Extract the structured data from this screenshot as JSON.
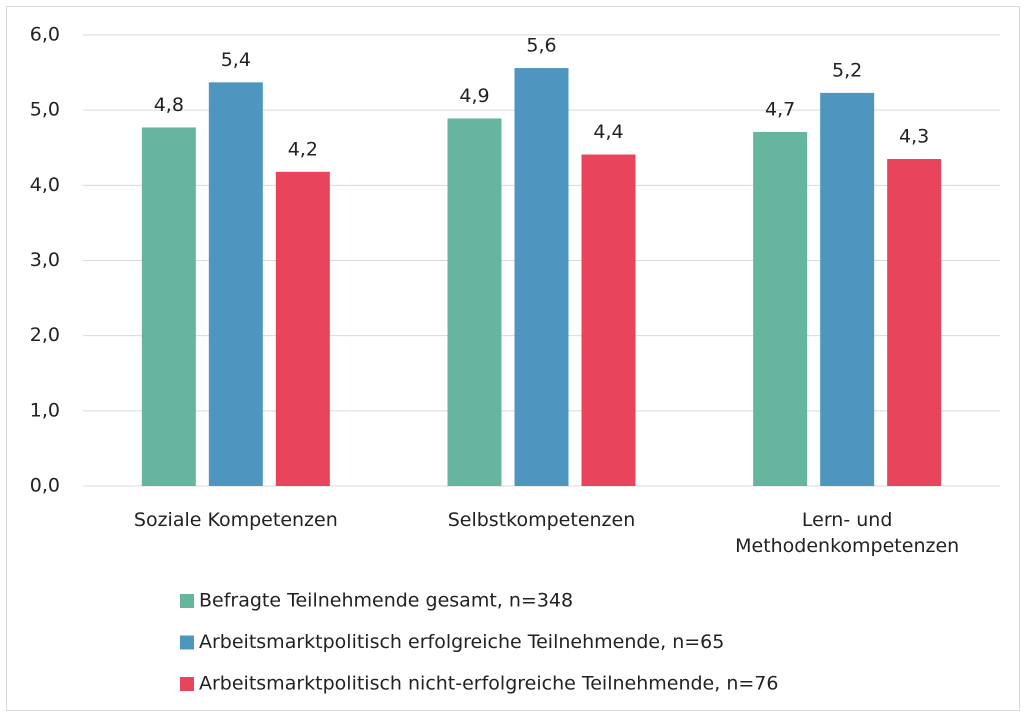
{
  "chart_data": {
    "type": "bar",
    "categories": [
      "Soziale Kompetenzen",
      "Selbstkompetenzen",
      "Lern- und Methodenkompetenzen"
    ],
    "series": [
      {
        "name": "Befragte Teilnehmende gesamt, n=348",
        "color": "#66b59e",
        "values": [
          4.77,
          4.89,
          4.71
        ],
        "value_labels": [
          "4,8",
          "4,9",
          "4,7"
        ]
      },
      {
        "name": "Arbeitsmarktpolitisch erfolgreiche Teilnehmende, n=65",
        "color": "#4e96c0",
        "values": [
          5.37,
          5.56,
          5.23
        ],
        "value_labels": [
          "5,4",
          "5,6",
          "5,2"
        ]
      },
      {
        "name": "Arbeitsmarktpolitisch nicht-erfolgreiche Teilnehmende, n=76",
        "color": "#e8445b",
        "values": [
          4.18,
          4.41,
          4.35
        ],
        "value_labels": [
          "4,2",
          "4,4",
          "4,3"
        ]
      }
    ],
    "ylim": [
      0,
      6
    ],
    "yticks": [
      {
        "value": 0,
        "label": "0,0"
      },
      {
        "value": 1,
        "label": "1,0"
      },
      {
        "value": 2,
        "label": "2,0"
      },
      {
        "value": 3,
        "label": "3,0"
      },
      {
        "value": 4,
        "label": "4,0"
      },
      {
        "value": 5,
        "label": "5,0"
      },
      {
        "value": 6,
        "label": "6,0"
      }
    ],
    "grid": true,
    "legend": "bottom"
  }
}
